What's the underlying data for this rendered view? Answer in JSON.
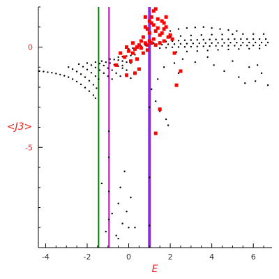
{
  "chart_data": {
    "type": "scatter",
    "title": "",
    "xlabel": "E",
    "ylabel": "<J3>",
    "xlim": [
      -4.35,
      6.9
    ],
    "ylim": [
      -10,
      2
    ],
    "x_ticks": [
      -4,
      -2,
      0,
      2,
      4,
      6
    ],
    "y_ticks": [
      0,
      -5
    ],
    "grid": false,
    "colors": {
      "black_series": "#000000",
      "red_series": "#ff0000",
      "line_green": "#008000",
      "line_magenta": "#e000e0",
      "line_purple": "#8a2be2",
      "axis_text": "#333333",
      "axis_title": "#e8231e"
    },
    "vertical_lines": [
      {
        "x": -1.45,
        "color": "#008000"
      },
      {
        "x": -0.95,
        "color": "#e000e0"
      },
      {
        "x": 1.0,
        "color": "#8a2be2"
      }
    ],
    "series": [
      {
        "color": "#000000",
        "marker_size": 1.2,
        "points": [
          [
            -4.3,
            -1.2
          ],
          [
            -4.1,
            -1.22
          ],
          [
            -3.9,
            -1.25
          ],
          [
            -3.7,
            -1.28
          ],
          [
            -3.5,
            -1.32
          ],
          [
            -3.3,
            -1.37
          ],
          [
            -3.1,
            -1.43
          ],
          [
            -2.9,
            -1.5
          ],
          [
            -2.7,
            -1.6
          ],
          [
            -2.5,
            -1.72
          ],
          [
            -2.3,
            -1.86
          ],
          [
            -2.1,
            -2.02
          ],
          [
            -1.9,
            -2.2
          ],
          [
            -1.7,
            -2.4
          ],
          [
            -1.6,
            -2.55
          ],
          [
            -2.9,
            -1.0
          ],
          [
            -2.7,
            -1.1
          ],
          [
            -2.5,
            -1.22
          ],
          [
            -2.3,
            -1.35
          ],
          [
            -2.1,
            -1.5
          ],
          [
            -1.9,
            -1.68
          ],
          [
            -1.7,
            -1.88
          ],
          [
            -1.55,
            -2.05
          ],
          [
            -2.4,
            -0.85
          ],
          [
            -2.2,
            -0.98
          ],
          [
            -2.0,
            -1.12
          ],
          [
            -1.8,
            -1.28
          ],
          [
            -1.6,
            -1.45
          ],
          [
            -1.45,
            -1.6
          ],
          [
            -2.0,
            -0.8
          ],
          [
            -1.8,
            -0.9
          ],
          [
            -1.6,
            -1.02
          ],
          [
            -1.4,
            -1.15
          ],
          [
            -1.2,
            -1.3
          ],
          [
            -1.0,
            -1.45
          ],
          [
            -0.8,
            -1.6
          ],
          [
            -1.6,
            -0.75
          ],
          [
            -1.4,
            -0.82
          ],
          [
            -1.2,
            -0.92
          ],
          [
            -1.0,
            -1.05
          ],
          [
            -0.8,
            -1.15
          ],
          [
            -0.6,
            -1.3
          ],
          [
            -0.4,
            -1.45
          ],
          [
            -1.3,
            -0.7
          ],
          [
            -1.1,
            -0.75
          ],
          [
            -0.9,
            -0.8
          ],
          [
            -0.7,
            -0.88
          ],
          [
            -0.5,
            -0.95
          ],
          [
            -0.3,
            -1.05
          ],
          [
            -0.1,
            -1.15
          ],
          [
            -0.9,
            -0.6
          ],
          [
            -0.7,
            -0.62
          ],
          [
            -0.5,
            -0.65
          ],
          [
            -0.3,
            -0.7
          ],
          [
            -0.1,
            -0.75
          ],
          [
            0.1,
            -0.8
          ],
          [
            -0.5,
            -0.5
          ],
          [
            -0.3,
            -0.48
          ],
          [
            -0.1,
            -0.45
          ],
          [
            0.1,
            -0.42
          ],
          [
            0.3,
            -0.38
          ],
          [
            0.0,
            -0.1
          ],
          [
            0.2,
            -0.05
          ],
          [
            0.4,
            0.0
          ],
          [
            0.6,
            0.05
          ],
          [
            0.8,
            0.1
          ],
          [
            1.2,
            0.2
          ],
          [
            1.5,
            0.25
          ],
          [
            1.8,
            0.28
          ],
          [
            2.1,
            0.3
          ],
          [
            2.4,
            0.32
          ],
          [
            2.7,
            0.34
          ],
          [
            3.0,
            0.35
          ],
          [
            3.3,
            0.36
          ],
          [
            3.6,
            0.37
          ],
          [
            3.9,
            0.38
          ],
          [
            4.2,
            0.38
          ],
          [
            4.5,
            0.39
          ],
          [
            4.8,
            0.39
          ],
          [
            5.1,
            0.4
          ],
          [
            5.4,
            0.4
          ],
          [
            5.7,
            0.4
          ],
          [
            6.0,
            0.4
          ],
          [
            6.3,
            0.4
          ],
          [
            6.6,
            0.4
          ],
          [
            1.3,
            0.1
          ],
          [
            1.6,
            0.12
          ],
          [
            1.9,
            0.14
          ],
          [
            2.2,
            0.15
          ],
          [
            2.5,
            0.16
          ],
          [
            2.8,
            0.17
          ],
          [
            3.1,
            0.18
          ],
          [
            3.4,
            0.19
          ],
          [
            3.7,
            0.2
          ],
          [
            4.0,
            0.2
          ],
          [
            4.3,
            0.21
          ],
          [
            4.6,
            0.21
          ],
          [
            4.9,
            0.22
          ],
          [
            5.2,
            0.22
          ],
          [
            5.5,
            0.22
          ],
          [
            5.8,
            0.23
          ],
          [
            6.1,
            0.23
          ],
          [
            6.4,
            0.23
          ],
          [
            6.7,
            0.23
          ],
          [
            1.5,
            -0.05
          ],
          [
            1.8,
            -0.03
          ],
          [
            2.1,
            -0.01
          ],
          [
            2.4,
            0.0
          ],
          [
            2.7,
            0.01
          ],
          [
            3.0,
            0.02
          ],
          [
            3.3,
            0.03
          ],
          [
            3.6,
            0.04
          ],
          [
            3.9,
            0.05
          ],
          [
            4.2,
            0.06
          ],
          [
            4.5,
            0.06
          ],
          [
            4.8,
            0.07
          ],
          [
            5.1,
            0.07
          ],
          [
            5.4,
            0.08
          ],
          [
            5.7,
            0.08
          ],
          [
            6.0,
            0.08
          ],
          [
            6.3,
            0.09
          ],
          [
            6.6,
            0.09
          ],
          [
            2.0,
            0.5
          ],
          [
            2.5,
            0.55
          ],
          [
            3.0,
            0.58
          ],
          [
            3.5,
            0.6
          ],
          [
            4.0,
            0.62
          ],
          [
            4.5,
            0.63
          ],
          [
            5.0,
            0.64
          ],
          [
            5.5,
            0.65
          ],
          [
            6.0,
            0.65
          ],
          [
            6.5,
            0.65
          ],
          [
            2.3,
            -0.25
          ],
          [
            2.8,
            -0.22
          ],
          [
            3.3,
            -0.2
          ],
          [
            3.8,
            -0.17
          ],
          [
            4.3,
            -0.14
          ],
          [
            4.8,
            -0.12
          ],
          [
            5.3,
            -0.1
          ],
          [
            5.8,
            -0.08
          ],
          [
            6.3,
            -0.07
          ],
          [
            2.0,
            0.8
          ],
          [
            2.4,
            0.9
          ],
          [
            2.8,
            0.95
          ],
          [
            3.2,
            0.98
          ],
          [
            3.6,
            1.0
          ],
          [
            4.0,
            0.95
          ],
          [
            4.4,
            0.9
          ],
          [
            4.8,
            0.85
          ],
          [
            5.2,
            0.8
          ],
          [
            2.6,
            -0.6
          ],
          [
            3.2,
            -0.75
          ],
          [
            3.8,
            -0.5
          ],
          [
            4.1,
            -0.9
          ],
          [
            4.6,
            -1.2
          ],
          [
            5.0,
            -0.7
          ],
          [
            5.3,
            -1.5
          ],
          [
            5.8,
            -1.0
          ],
          [
            6.1,
            -1.7
          ],
          [
            6.4,
            -1.3
          ],
          [
            6.7,
            -1.9
          ],
          [
            6.2,
            -0.9
          ],
          [
            5.6,
            -1.8
          ],
          [
            2.2,
            -0.8
          ],
          [
            2.4,
            -1.3
          ],
          [
            1.7,
            -1.0
          ],
          [
            1.4,
            -1.6
          ],
          [
            -0.1,
            -1.45
          ],
          [
            0.1,
            -1.55
          ],
          [
            -0.3,
            -0.92
          ],
          [
            1.1,
            -2.1
          ],
          [
            1.3,
            -2.7
          ],
          [
            1.5,
            -3.2
          ],
          [
            1.8,
            -3.6
          ],
          [
            1.9,
            -3.9
          ],
          [
            -0.95,
            -4.2
          ],
          [
            -0.95,
            -5.5
          ],
          [
            -0.95,
            -7.2
          ],
          [
            -0.95,
            -8.6
          ],
          [
            -1.3,
            -6.8
          ],
          [
            -0.2,
            -6.2
          ],
          [
            -0.4,
            -7.0
          ],
          [
            -0.5,
            -7.8
          ],
          [
            0.1,
            -7.5
          ],
          [
            -0.1,
            -8.2
          ],
          [
            -0.3,
            -8.8
          ],
          [
            0.3,
            -9.0
          ],
          [
            -0.6,
            -9.4
          ],
          [
            -1.1,
            -9.2
          ],
          [
            -0.5,
            -9.55
          ],
          [
            0.0,
            -9.0
          ],
          [
            -0.8,
            -8.3
          ],
          [
            1.0,
            -3.0
          ],
          [
            1.0,
            -6.5
          ],
          [
            1.0,
            -8.9
          ]
        ]
      },
      {
        "color": "#ff0000",
        "marker_size": 2.5,
        "points": [
          [
            1.1,
            1.2
          ],
          [
            1.2,
            1.1
          ],
          [
            0.9,
            0.9
          ],
          [
            1.0,
            0.7
          ],
          [
            1.3,
            0.8
          ],
          [
            0.8,
            1.0
          ],
          [
            1.4,
            0.95
          ],
          [
            1.5,
            0.6
          ],
          [
            1.6,
            0.7
          ],
          [
            0.7,
            0.5
          ],
          [
            0.6,
            0.3
          ],
          [
            1.7,
            0.9
          ],
          [
            1.8,
            1.0
          ],
          [
            0.5,
            0.1
          ],
          [
            0.4,
            0.0
          ],
          [
            0.3,
            -0.1
          ],
          [
            0.2,
            0.2
          ],
          [
            0.0,
            -0.2
          ],
          [
            -0.1,
            0.0
          ],
          [
            0.6,
            -0.05
          ],
          [
            0.8,
            0.2
          ],
          [
            1.0,
            0.3
          ],
          [
            1.2,
            0.4
          ],
          [
            1.9,
            0.5
          ],
          [
            2.0,
            0.6
          ],
          [
            2.1,
            0.4
          ],
          [
            1.7,
            0.3
          ],
          [
            1.5,
            0.2
          ],
          [
            1.3,
            0.1
          ],
          [
            1.1,
            0.2
          ],
          [
            0.9,
            0.1
          ],
          [
            1.2,
            1.8
          ],
          [
            1.3,
            1.9
          ],
          [
            1.1,
            1.5
          ],
          [
            1.4,
            1.4
          ],
          [
            1.0,
            1.3
          ],
          [
            0.8,
            1.5
          ],
          [
            1.6,
            1.3
          ],
          [
            1.7,
            1.2
          ],
          [
            1.8,
            1.5
          ],
          [
            -0.4,
            -0.3
          ],
          [
            -0.2,
            -0.5
          ],
          [
            0.2,
            -0.3
          ],
          [
            0.4,
            -0.6
          ],
          [
            0.5,
            -1.1
          ],
          [
            0.3,
            -1.3
          ],
          [
            -0.1,
            -1.4
          ],
          [
            -0.6,
            -0.9
          ],
          [
            2.2,
            -0.3
          ],
          [
            2.5,
            -1.2
          ],
          [
            2.3,
            -1.9
          ],
          [
            1.3,
            -4.3
          ],
          [
            1.5,
            -3.1
          ],
          [
            0.1,
            -0.7
          ],
          [
            0.7,
            -0.3
          ],
          [
            0.9,
            -0.15
          ]
        ]
      }
    ]
  }
}
